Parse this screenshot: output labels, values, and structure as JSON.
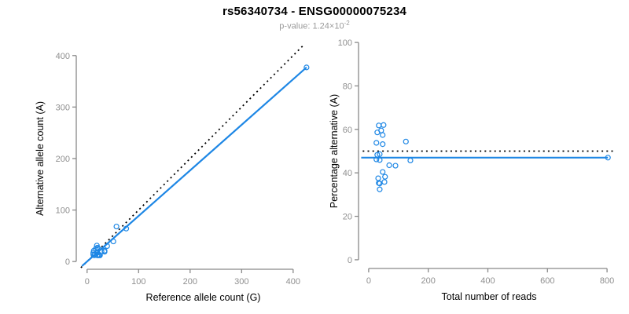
{
  "header": {
    "title": "rs56340734 - ENSG00000075234",
    "subtitle_text": "p-value: 1.24×10",
    "subtitle_exponent": "-2"
  },
  "colors": {
    "accent_blue": "#1E87E5",
    "axis_line_gray": "#898989",
    "tick_label_gray": "#8f8f8f",
    "axis_title_black": "#000000",
    "subtitle_gray": "#9a9a9a",
    "identity_line_black": "#000000"
  },
  "chart_data": [
    {
      "type": "scatter",
      "name": "ref-vs-alt-count",
      "xlabel": "Reference allele count (G)",
      "ylabel": "Alternative allele count (A)",
      "xlim": [
        -21,
        472
      ],
      "ylim": [
        -15,
        421
      ],
      "xticks": [
        0,
        100,
        200,
        300,
        400
      ],
      "yticks": [
        0,
        100,
        200,
        300,
        400
      ],
      "axis_span_x": [
        0,
        400
      ],
      "axis_span_y": [
        0,
        400
      ],
      "grid": false,
      "points": [
        [
          19,
          31
        ],
        [
          13,
          21
        ],
        [
          17,
          25
        ],
        [
          12,
          17
        ],
        [
          20,
          27
        ],
        [
          12,
          14
        ],
        [
          22,
          25
        ],
        [
          57,
          68
        ],
        [
          15,
          14
        ],
        [
          19,
          18
        ],
        [
          14,
          12
        ],
        [
          20,
          17
        ],
        [
          39,
          30
        ],
        [
          51,
          39
        ],
        [
          76,
          64
        ],
        [
          28,
          19
        ],
        [
          34,
          21
        ],
        [
          20,
          12
        ],
        [
          24,
          13
        ],
        [
          34,
          19
        ],
        [
          22,
          12
        ],
        [
          25,
          12
        ],
        [
          426,
          377
        ]
      ],
      "lines": [
        {
          "name": "identity-line",
          "kind": "abline",
          "slope": 1,
          "intercept": 0,
          "dash": "dotted",
          "color": "identity_line_black",
          "width": 1.8,
          "x_range": [
            -12,
            420
          ]
        },
        {
          "name": "fit-line",
          "kind": "abline",
          "slope": 0.885,
          "intercept": 0,
          "dash": "solid",
          "color": "accent_blue",
          "width": 2.2,
          "x_range": [
            -10,
            426
          ]
        }
      ]
    },
    {
      "type": "scatter",
      "name": "reads-vs-percentage",
      "xlabel": "Total number of reads",
      "ylabel": "Percentage alternative (A)",
      "xlim": [
        -34,
        842
      ],
      "ylim": [
        -4,
        104
      ],
      "xticks": [
        0,
        200,
        400,
        600,
        800
      ],
      "yticks": [
        0,
        20,
        40,
        60,
        80,
        100
      ],
      "axis_span_x": [
        0,
        800
      ],
      "axis_span_y": [
        0,
        100
      ],
      "grid": false,
      "points": [
        [
          50,
          62.0
        ],
        [
          34,
          61.8
        ],
        [
          42,
          59.5
        ],
        [
          29,
          58.6
        ],
        [
          47,
          57.4
        ],
        [
          26,
          53.8
        ],
        [
          47,
          53.2
        ],
        [
          125,
          54.4
        ],
        [
          29,
          48.3
        ],
        [
          37,
          48.6
        ],
        [
          26,
          46.2
        ],
        [
          37,
          45.9
        ],
        [
          69,
          43.5
        ],
        [
          90,
          43.3
        ],
        [
          140,
          45.7
        ],
        [
          47,
          40.4
        ],
        [
          55,
          38.2
        ],
        [
          32,
          37.5
        ],
        [
          37,
          35.1
        ],
        [
          53,
          35.8
        ],
        [
          34,
          35.3
        ],
        [
          37,
          32.4
        ],
        [
          803,
          47.0
        ]
      ],
      "lines": [
        {
          "name": "expected-50pct-line",
          "kind": "hline",
          "y": 50,
          "dash": "dotted",
          "color": "identity_line_black",
          "width": 1.8,
          "x_range": [
            -20,
            820
          ]
        },
        {
          "name": "fit-line",
          "kind": "hline",
          "y": 47.0,
          "dash": "solid",
          "color": "accent_blue",
          "width": 2.2,
          "x_range": [
            -25,
            803
          ]
        }
      ]
    }
  ]
}
